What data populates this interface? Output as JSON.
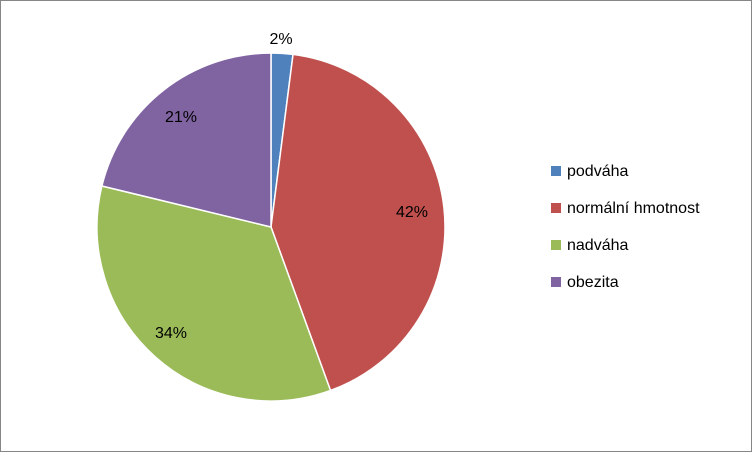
{
  "chart_data": {
    "type": "pie",
    "title": "",
    "categories": [
      "podváha",
      "normální hmotnost",
      "nadváha",
      "obezita"
    ],
    "values": [
      2,
      42,
      34,
      21
    ],
    "labels": [
      "2%",
      "42%",
      "34%",
      "21%"
    ],
    "colors": [
      "#4F81BD",
      "#C0504D",
      "#9BBB59",
      "#8064A2"
    ],
    "start_angle": "12 o'clock",
    "direction": "clockwise",
    "legend": "right"
  }
}
